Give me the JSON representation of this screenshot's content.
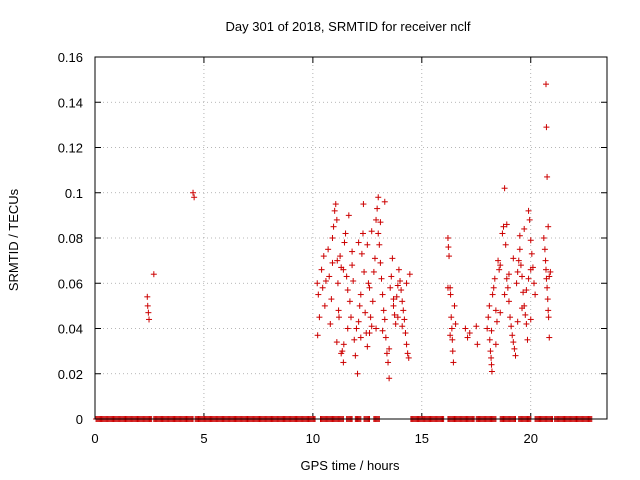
{
  "chart_data": {
    "type": "scatter",
    "title": "Day 301 of 2018, SRMTID for receiver nclf",
    "xlabel": "GPS time / hours",
    "ylabel": "SRMTID / TECUs",
    "xlim": [
      0,
      23.5
    ],
    "ylim": [
      0,
      0.16
    ],
    "xticks": [
      0,
      5,
      10,
      15,
      20
    ],
    "xtick_labels": [
      "0",
      "5",
      "10",
      "15",
      "20"
    ],
    "yticks": [
      0,
      0.02,
      0.04,
      0.06,
      0.08,
      0.1,
      0.12,
      0.14,
      0.16
    ],
    "ytick_labels": [
      "0",
      "0.02",
      "0.04",
      "0.06",
      "0.08",
      "0.1",
      "0.12",
      "0.14",
      "0.16"
    ],
    "grid": true,
    "marker": "+",
    "color": "#cc0000",
    "series": [
      {
        "name": "SRMTID",
        "zero_ranges": [
          [
            0.05,
            2.6
          ],
          [
            2.7,
            4.5
          ],
          [
            4.6,
            10.1
          ],
          [
            10.35,
            11.4
          ],
          [
            11.55,
            11.8
          ],
          [
            11.95,
            12.2
          ],
          [
            12.35,
            12.6
          ],
          [
            12.8,
            13.05
          ],
          [
            14.5,
            16.0
          ],
          [
            16.2,
            17.4
          ],
          [
            17.5,
            18.4
          ],
          [
            18.6,
            19.3
          ],
          [
            19.45,
            20.0
          ],
          [
            20.2,
            21.0
          ],
          [
            21.1,
            22.8
          ]
        ],
        "points": [
          [
            2.4,
            0.054
          ],
          [
            2.42,
            0.05
          ],
          [
            2.45,
            0.047
          ],
          [
            2.48,
            0.044
          ],
          [
            2.7,
            0.064
          ],
          [
            4.5,
            0.1
          ],
          [
            4.55,
            0.098
          ],
          [
            10.2,
            0.06
          ],
          [
            10.25,
            0.055
          ],
          [
            10.3,
            0.045
          ],
          [
            10.22,
            0.037
          ],
          [
            10.4,
            0.066
          ],
          [
            10.45,
            0.058
          ],
          [
            10.5,
            0.072
          ],
          [
            10.55,
            0.05
          ],
          [
            10.7,
            0.075
          ],
          [
            10.75,
            0.063
          ],
          [
            10.8,
            0.042
          ],
          [
            10.85,
            0.053
          ],
          [
            10.9,
            0.08
          ],
          [
            10.95,
            0.085
          ],
          [
            11.0,
            0.092
          ],
          [
            11.05,
            0.095
          ],
          [
            11.1,
            0.088
          ],
          [
            11.12,
            0.07
          ],
          [
            11.15,
            0.06
          ],
          [
            11.18,
            0.048
          ],
          [
            11.2,
            0.045
          ],
          [
            11.25,
            0.072
          ],
          [
            11.3,
            0.067
          ],
          [
            11.35,
            0.03
          ],
          [
            11.4,
            0.025
          ],
          [
            11.42,
            0.033
          ],
          [
            11.45,
            0.078
          ],
          [
            11.5,
            0.082
          ],
          [
            11.55,
            0.063
          ],
          [
            11.6,
            0.057
          ],
          [
            11.65,
            0.09
          ],
          [
            11.7,
            0.052
          ],
          [
            11.75,
            0.045
          ],
          [
            11.8,
            0.068
          ],
          [
            11.85,
            0.061
          ],
          [
            11.9,
            0.035
          ],
          [
            11.95,
            0.028
          ],
          [
            12.0,
            0.04
          ],
          [
            12.05,
            0.02
          ],
          [
            12.1,
            0.043
          ],
          [
            12.15,
            0.05
          ],
          [
            12.2,
            0.055
          ],
          [
            12.25,
            0.073
          ],
          [
            12.3,
            0.082
          ],
          [
            12.32,
            0.095
          ],
          [
            12.35,
            0.065
          ],
          [
            12.4,
            0.047
          ],
          [
            12.45,
            0.038
          ],
          [
            12.5,
            0.032
          ],
          [
            12.55,
            0.06
          ],
          [
            12.6,
            0.058
          ],
          [
            12.65,
            0.045
          ],
          [
            12.7,
            0.041
          ],
          [
            12.75,
            0.052
          ],
          [
            12.8,
            0.065
          ],
          [
            12.85,
            0.071
          ],
          [
            12.9,
            0.088
          ],
          [
            12.95,
            0.093
          ],
          [
            13.0,
            0.082
          ],
          [
            13.05,
            0.077
          ],
          [
            13.1,
            0.069
          ],
          [
            13.15,
            0.062
          ],
          [
            13.2,
            0.055
          ],
          [
            13.25,
            0.048
          ],
          [
            13.3,
            0.044
          ],
          [
            13.35,
            0.036
          ],
          [
            13.4,
            0.029
          ],
          [
            13.45,
            0.025
          ],
          [
            13.5,
            0.018
          ],
          [
            13.55,
            0.058
          ],
          [
            13.6,
            0.063
          ],
          [
            13.65,
            0.071
          ],
          [
            13.7,
            0.05
          ],
          [
            13.75,
            0.046
          ],
          [
            13.8,
            0.042
          ],
          [
            13.85,
            0.054
          ],
          [
            13.9,
            0.059
          ],
          [
            13.95,
            0.066
          ],
          [
            14.0,
            0.061
          ],
          [
            14.05,
            0.057
          ],
          [
            14.1,
            0.052
          ],
          [
            14.15,
            0.048
          ],
          [
            14.2,
            0.044
          ],
          [
            14.25,
            0.038
          ],
          [
            14.3,
            0.033
          ],
          [
            14.35,
            0.029
          ],
          [
            14.4,
            0.027
          ],
          [
            14.45,
            0.064
          ],
          [
            11.1,
            0.034
          ],
          [
            11.3,
            0.029
          ],
          [
            11.6,
            0.04
          ],
          [
            12.2,
            0.036
          ],
          [
            12.6,
            0.038
          ],
          [
            12.9,
            0.04
          ],
          [
            13.2,
            0.039
          ],
          [
            13.5,
            0.031
          ],
          [
            13.7,
            0.053
          ],
          [
            13.9,
            0.045
          ],
          [
            14.1,
            0.041
          ],
          [
            14.3,
            0.06
          ],
          [
            12.5,
            0.077
          ],
          [
            12.7,
            0.083
          ],
          [
            13.1,
            0.087
          ],
          [
            13.3,
            0.096
          ],
          [
            13.0,
            0.098
          ],
          [
            12.1,
            0.078
          ],
          [
            11.8,
            0.074
          ],
          [
            11.4,
            0.066
          ],
          [
            10.9,
            0.069
          ],
          [
            10.6,
            0.061
          ],
          [
            16.2,
            0.08
          ],
          [
            16.22,
            0.076
          ],
          [
            16.25,
            0.072
          ],
          [
            16.3,
            0.058
          ],
          [
            16.32,
            0.055
          ],
          [
            16.35,
            0.045
          ],
          [
            16.38,
            0.04
          ],
          [
            16.4,
            0.035
          ],
          [
            16.42,
            0.03
          ],
          [
            16.45,
            0.025
          ],
          [
            16.5,
            0.05
          ],
          [
            16.55,
            0.042
          ],
          [
            16.2,
            0.058
          ],
          [
            16.3,
            0.037
          ],
          [
            17.0,
            0.04
          ],
          [
            17.1,
            0.036
          ],
          [
            17.2,
            0.038
          ],
          [
            17.5,
            0.041
          ],
          [
            17.55,
            0.033
          ],
          [
            18.0,
            0.04
          ],
          [
            18.05,
            0.045
          ],
          [
            18.1,
            0.05
          ],
          [
            18.12,
            0.035
          ],
          [
            18.15,
            0.03
          ],
          [
            18.18,
            0.027
          ],
          [
            18.2,
            0.024
          ],
          [
            18.22,
            0.021
          ],
          [
            18.25,
            0.055
          ],
          [
            18.3,
            0.058
          ],
          [
            18.35,
            0.062
          ],
          [
            18.4,
            0.048
          ],
          [
            18.45,
            0.043
          ],
          [
            18.5,
            0.07
          ],
          [
            18.55,
            0.066
          ],
          [
            18.6,
            0.068
          ],
          [
            18.7,
            0.082
          ],
          [
            18.75,
            0.085
          ],
          [
            18.8,
            0.102
          ],
          [
            18.85,
            0.077
          ],
          [
            18.9,
            0.062
          ],
          [
            18.95,
            0.058
          ],
          [
            19.0,
            0.052
          ],
          [
            19.05,
            0.045
          ],
          [
            19.1,
            0.041
          ],
          [
            19.15,
            0.037
          ],
          [
            19.2,
            0.034
          ],
          [
            19.25,
            0.031
          ],
          [
            19.3,
            0.028
          ],
          [
            19.35,
            0.06
          ],
          [
            19.4,
            0.065
          ],
          [
            19.45,
            0.07
          ],
          [
            19.5,
            0.075
          ],
          [
            19.55,
            0.068
          ],
          [
            19.6,
            0.063
          ],
          [
            19.65,
            0.056
          ],
          [
            19.7,
            0.05
          ],
          [
            19.75,
            0.046
          ],
          [
            19.8,
            0.042
          ],
          [
            19.85,
            0.035
          ],
          [
            19.9,
            0.092
          ],
          [
            19.95,
            0.088
          ],
          [
            20.0,
            0.079
          ],
          [
            20.05,
            0.073
          ],
          [
            20.1,
            0.067
          ],
          [
            20.15,
            0.06
          ],
          [
            20.2,
            0.055
          ],
          [
            18.2,
            0.039
          ],
          [
            18.4,
            0.033
          ],
          [
            18.6,
            0.047
          ],
          [
            18.8,
            0.055
          ],
          [
            19.0,
            0.064
          ],
          [
            19.2,
            0.071
          ],
          [
            19.4,
            0.043
          ],
          [
            19.6,
            0.049
          ],
          [
            19.8,
            0.057
          ],
          [
            19.9,
            0.062
          ],
          [
            20.0,
            0.066
          ],
          [
            18.9,
            0.086
          ],
          [
            19.5,
            0.081
          ],
          [
            19.7,
            0.084
          ],
          [
            20.0,
            0.044
          ],
          [
            20.6,
            0.08
          ],
          [
            20.65,
            0.075
          ],
          [
            20.68,
            0.07
          ],
          [
            20.7,
            0.066
          ],
          [
            20.72,
            0.062
          ],
          [
            20.75,
            0.058
          ],
          [
            20.78,
            0.053
          ],
          [
            20.8,
            0.048
          ],
          [
            20.82,
            0.045
          ],
          [
            20.85,
            0.036
          ],
          [
            20.9,
            0.065
          ],
          [
            20.7,
            0.148
          ],
          [
            20.72,
            0.129
          ],
          [
            20.75,
            0.107
          ],
          [
            20.8,
            0.085
          ],
          [
            20.85,
            0.063
          ]
        ]
      }
    ]
  }
}
